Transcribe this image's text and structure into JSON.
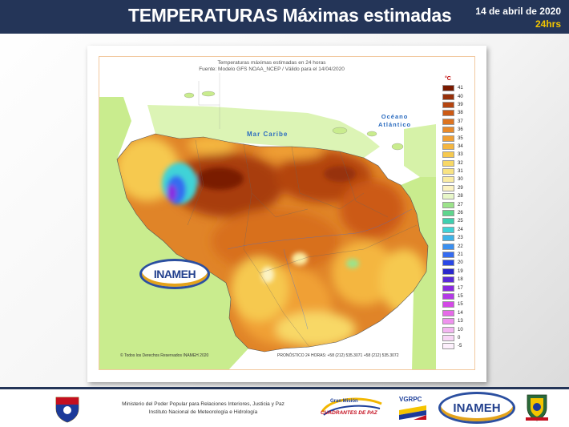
{
  "header": {
    "title": "TEMPERATURAS Máximas estimadas",
    "date": "14 de abril de 2020",
    "period": "24hrs"
  },
  "map": {
    "title_line1": "Temperaturas máximas estimadas en 24 horas",
    "title_line2": "Fuente: Modelo GFS NOAA_NCEP / Válido para el 14/04/2020",
    "sea_label": "Mar Caribe",
    "ocean_label_1": "Océano",
    "ocean_label_2": "Atlántico",
    "logo_text": "INAMEH",
    "copyright": "© Todos los Derechos Reservados INAMEH 2020",
    "forecast_phone": "PRONÓSTICO 24 HORAS: +58 (212) 535.3071 +58 (212) 535.3072",
    "legend_unit": "°C",
    "legend": [
      {
        "value": "41",
        "color": "#7a1a00"
      },
      {
        "value": "40",
        "color": "#97300a"
      },
      {
        "value": "39",
        "color": "#b4440f"
      },
      {
        "value": "38",
        "color": "#cc5a15"
      },
      {
        "value": "37",
        "color": "#dd7420"
      },
      {
        "value": "36",
        "color": "#e98a2a"
      },
      {
        "value": "35",
        "color": "#f0a035"
      },
      {
        "value": "34",
        "color": "#f4b640"
      },
      {
        "value": "33",
        "color": "#f6c94f"
      },
      {
        "value": "32",
        "color": "#f8d866"
      },
      {
        "value": "31",
        "color": "#f9e383"
      },
      {
        "value": "30",
        "color": "#fbeca3"
      },
      {
        "value": "29",
        "color": "#fcf3c2"
      },
      {
        "value": "28",
        "color": "#e8f7c9"
      },
      {
        "value": "27",
        "color": "#9ce38a"
      },
      {
        "value": "26",
        "color": "#5fd58d"
      },
      {
        "value": "25",
        "color": "#3fd0b0"
      },
      {
        "value": "24",
        "color": "#3fd3d7"
      },
      {
        "value": "23",
        "color": "#3fb4e8"
      },
      {
        "value": "22",
        "color": "#3a8ff0"
      },
      {
        "value": "21",
        "color": "#356cf0"
      },
      {
        "value": "20",
        "color": "#2a48e6"
      },
      {
        "value": "19",
        "color": "#2a28cc"
      },
      {
        "value": "18",
        "color": "#5a2ad8"
      },
      {
        "value": "17",
        "color": "#8a2ae0"
      },
      {
        "value": "15",
        "color": "#b43ae6"
      },
      {
        "value": "15",
        "color": "#d448e6"
      },
      {
        "value": "14",
        "color": "#e66ae8"
      },
      {
        "value": "13",
        "color": "#ef92ee"
      },
      {
        "value": "10",
        "color": "#f4b6f2"
      },
      {
        "value": "0",
        "color": "#f8d6f6"
      },
      {
        "value": "-5",
        "color": "#fdf0fc"
      }
    ]
  },
  "footer": {
    "ministry_line1": "Ministerio del Poder Popular para Relaciones Interiores, Justicia y Paz",
    "ministry_line2": "Instituto  Nacional de Meteorología e Hidrología",
    "gran_mision_1": "Gran Misión",
    "gran_mision_2": "CUADRANTES DE PAZ",
    "vgrpc": "VGRPC",
    "inameh": "INAMEH"
  }
}
